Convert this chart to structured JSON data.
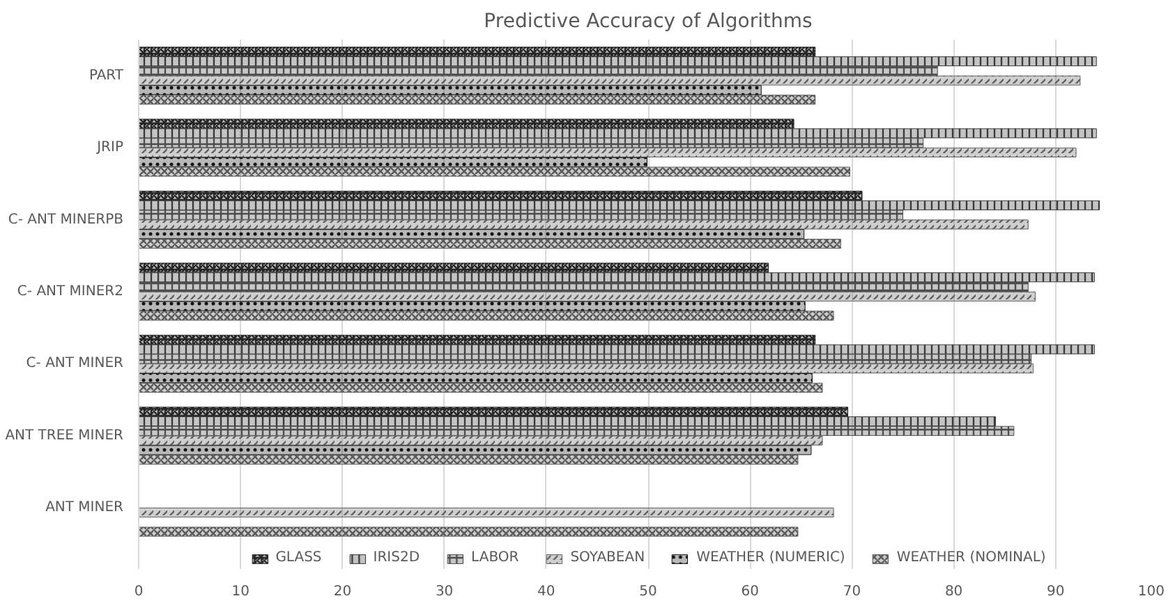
{
  "chart_data": {
    "type": "bar",
    "orientation": "horizontal",
    "title": "Predictive Accuracy of Algorithms",
    "categories": [
      "PART",
      "JRIP",
      "C- ANT MINERPB",
      "C- ANT MINER2",
      "C- ANT MINER",
      "ANT TREE MINER",
      "ANT MINER"
    ],
    "series": [
      {
        "name": "GLASS",
        "color": "#262626",
        "values": [
          66.4,
          64.3,
          71,
          61.8,
          66.4,
          69.6,
          null
        ]
      },
      {
        "name": "IRIS2D",
        "color": "#3a3a3a",
        "values": [
          94,
          94,
          94.3,
          93.8,
          93.8,
          84.1,
          null
        ]
      },
      {
        "name": "LABOR",
        "color": "#4d4d4d",
        "values": [
          78.4,
          77,
          75,
          87.3,
          87.6,
          85.9,
          null
        ]
      },
      {
        "name": "SOYABEAN",
        "color": "#616161",
        "values": [
          92.4,
          92,
          87.3,
          88,
          87.8,
          67.1,
          68.2
        ]
      },
      {
        "name": "WEATHER (NUMERIC)",
        "color": "#141414",
        "values": [
          61.1,
          49.9,
          65.3,
          65.4,
          66.1,
          66,
          null
        ]
      },
      {
        "name": "WEATHER (NOMINAL)",
        "color": "#595959",
        "values": [
          66.4,
          69.8,
          68.9,
          68.2,
          67.1,
          64.7,
          64.7
        ]
      }
    ],
    "xlim": [
      0,
      100
    ],
    "xticks": [
      0,
      10,
      20,
      30,
      40,
      50,
      60,
      70,
      80,
      90,
      100
    ],
    "grid": "x",
    "legend": "bottom"
  }
}
